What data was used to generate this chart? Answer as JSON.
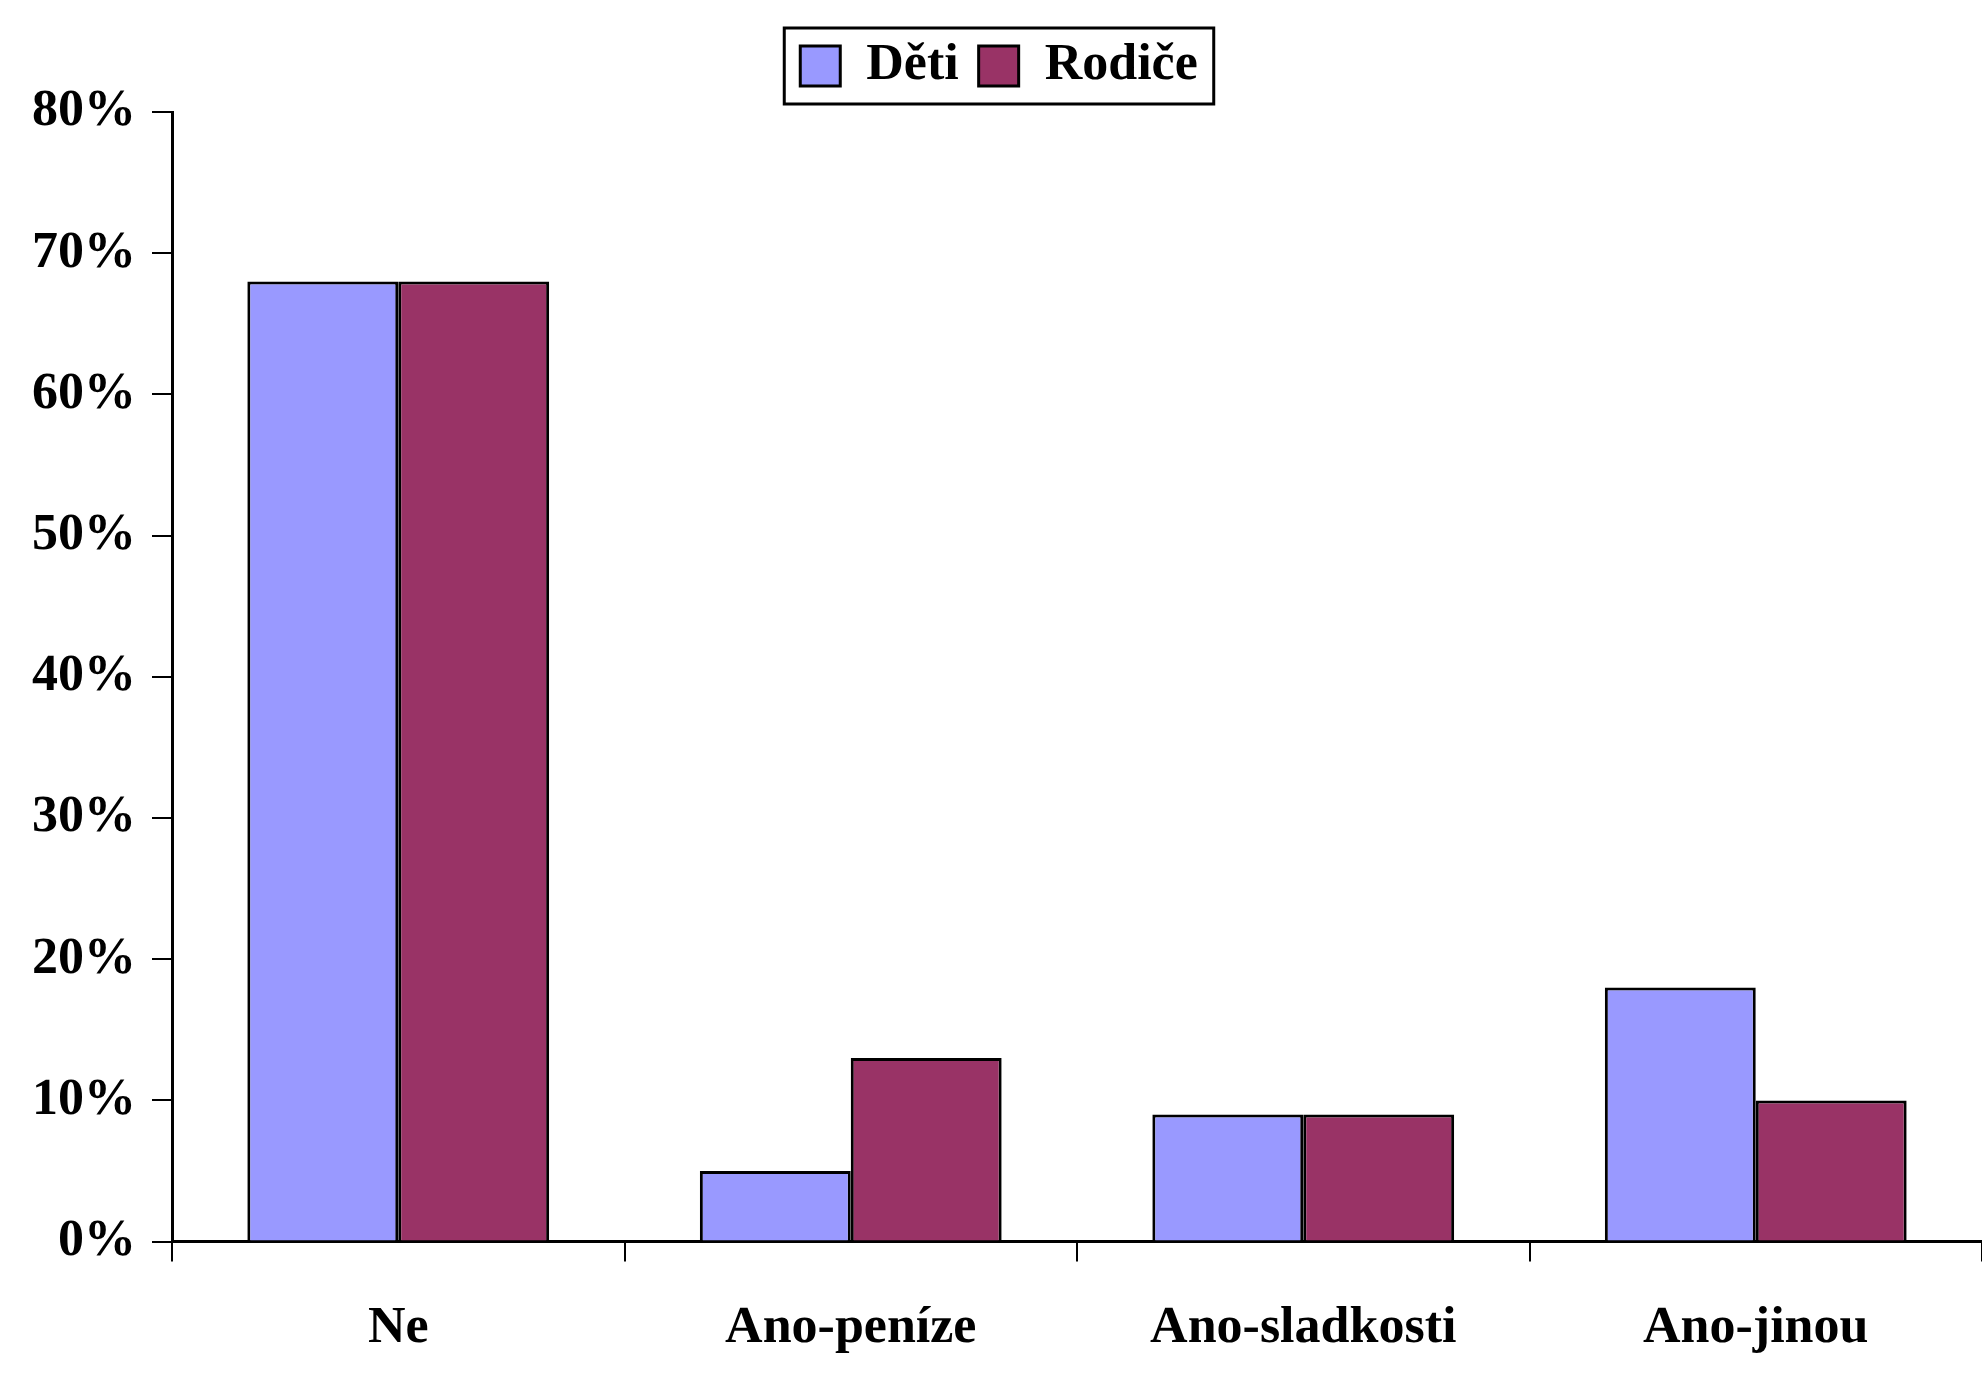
{
  "chart_data": {
    "type": "bar",
    "categories": [
      "Ne",
      "Ano-peníze",
      "Ano-sladkosti",
      "Ano-jinou"
    ],
    "series": [
      {
        "name": "Děti",
        "color": "#9999ff",
        "values": [
          68,
          5,
          9,
          18
        ]
      },
      {
        "name": "Rodiče",
        "color": "#993366",
        "values": [
          68,
          13,
          9,
          10
        ]
      }
    ],
    "ylim": [
      0,
      80
    ],
    "yticks": [
      {
        "value": 0,
        "label": "0%"
      },
      {
        "value": 10,
        "label": "10%"
      },
      {
        "value": 20,
        "label": "20%"
      },
      {
        "value": 30,
        "label": "30%"
      },
      {
        "value": 40,
        "label": "40%"
      },
      {
        "value": 50,
        "label": "50%"
      },
      {
        "value": 60,
        "label": "60%"
      },
      {
        "value": 70,
        "label": "70%"
      },
      {
        "value": 80,
        "label": "80%"
      }
    ],
    "grid": false,
    "legend": "top"
  }
}
